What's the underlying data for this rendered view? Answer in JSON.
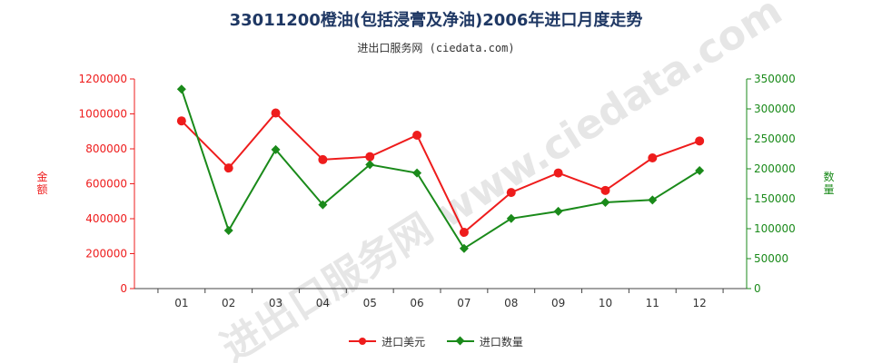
{
  "chart_data": {
    "type": "line",
    "title": "33011200橙油(包括浸膏及净油)2006年进口月度走势",
    "subtitle": "进出口服务网 (ciedata.com)",
    "watermark": "进出口服务网 www.ciedata.com",
    "categories": [
      "01",
      "02",
      "03",
      "04",
      "05",
      "06",
      "07",
      "08",
      "09",
      "10",
      "11",
      "12"
    ],
    "series": [
      {
        "name": "进口美元",
        "axis": "left",
        "color": "#ee1c1c",
        "marker": "circle",
        "values": [
          960000,
          690000,
          1005000,
          738000,
          755000,
          878000,
          322000,
          550000,
          662000,
          562000,
          748000,
          845000
        ]
      },
      {
        "name": "进口数量",
        "axis": "right",
        "color": "#1a8a1a",
        "marker": "diamond",
        "values": [
          333000,
          97000,
          232000,
          140000,
          207000,
          193000,
          67000,
          117000,
          129000,
          144000,
          148000,
          197000
        ]
      }
    ],
    "ylabel_left": "金额",
    "ylabel_right": "数量",
    "ylim_left": [
      0,
      1200000
    ],
    "ylim_right": [
      0,
      350000
    ],
    "yticks_left": [
      "0",
      "200000",
      "400000",
      "600000",
      "800000",
      "1000000",
      "1200000"
    ],
    "yticks_right": [
      "0",
      "50000",
      "100000",
      "150000",
      "200000",
      "250000",
      "300000",
      "350000"
    ],
    "left_axis_color": "#ee1c1c",
    "right_axis_color": "#1a8a1a",
    "grid": false,
    "legend_position": "bottom-center"
  }
}
